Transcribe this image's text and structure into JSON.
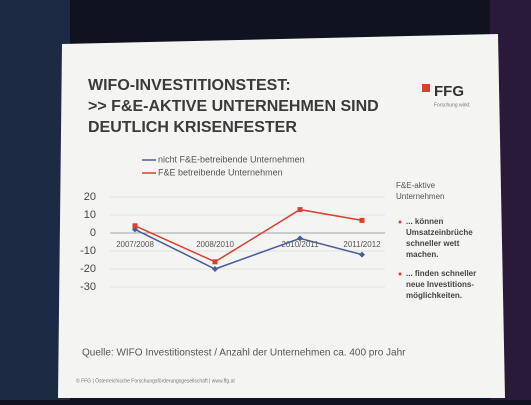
{
  "chart_data": {
    "type": "line",
    "title": [
      "WIFO-INVESTITIONSTEST:",
      ">> F&E-AKTIVE UNTERNEHMEN SIND",
      "DEUTLICH KRISENFESTER"
    ],
    "logo": "FFG",
    "logo_tagline": "Forschung wirkt.",
    "categories": [
      "2007/2008",
      "2008/2010",
      "2010/2011",
      "2011/2012"
    ],
    "series": [
      {
        "name": "nicht F&E-betreibende Unternehmen",
        "color": "#4a5a9a",
        "values": [
          2,
          -20,
          -3,
          -12
        ]
      },
      {
        "name": "F&E betreibende Unternehmen",
        "color": "#d8412f",
        "values": [
          4,
          -16,
          13,
          7
        ]
      }
    ],
    "ylim": [
      -30,
      20
    ],
    "yticks": [
      -30,
      -20,
      -10,
      0,
      10,
      20
    ],
    "grid": true,
    "side_heading": [
      "F&E-aktive",
      "Unternehmen"
    ],
    "notes": [
      [
        "... können",
        "Umsatzeinbrüche",
        "schneller wett",
        "machen."
      ],
      [
        "... finden schneller",
        "neue Investitions-",
        "möglichkeiten."
      ]
    ],
    "source": "Quelle: WIFO Investitionstest / Anzahl der Unternehmen ca. 400 pro Jahr",
    "footer": "© FFG | Österreichische Forschungsförderungsgesellschaft | www.ffg.at"
  }
}
